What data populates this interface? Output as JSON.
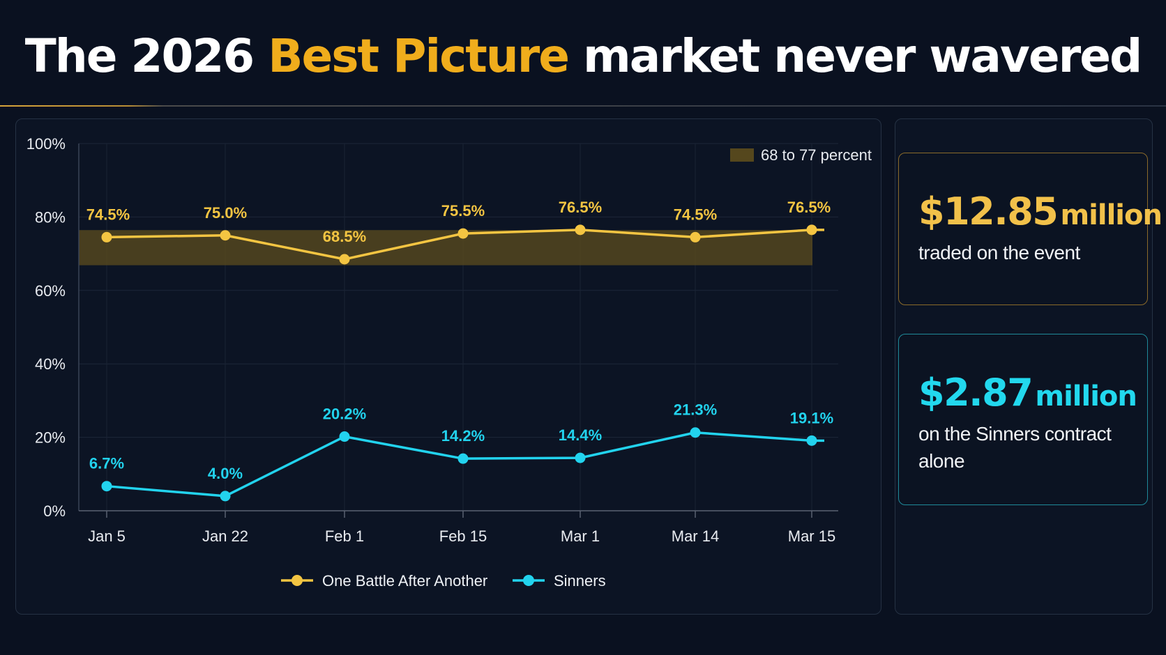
{
  "header": {
    "title_before": "The 2026 ",
    "title_accent": "Best Picture",
    "title_after": " market never wavered"
  },
  "colors": {
    "background": "#0a1120",
    "gold": "#f4c542",
    "cyan": "#22d3ee",
    "band": "#5a4a1e"
  },
  "chart_data": {
    "type": "line",
    "categories": [
      "Jan 5",
      "Jan 22",
      "Feb 1",
      "Feb 15",
      "Mar 1",
      "Mar 14",
      "Mar 15"
    ],
    "ylim": [
      0,
      100
    ],
    "yticks": [
      "0%",
      "20%",
      "40%",
      "60%",
      "80%",
      "100%"
    ],
    "grid": true,
    "series": [
      {
        "name": "One Battle After Another",
        "values": [
          74.5,
          75.0,
          68.5,
          75.5,
          76.5,
          74.5,
          76.5
        ],
        "labels": [
          "74.5%",
          "75.0%",
          "68.5%",
          "75.5%",
          "76.5%",
          "74.5%",
          "76.5%"
        ]
      },
      {
        "name": "Sinners",
        "values": [
          6.7,
          4.0,
          20.2,
          14.2,
          14.4,
          21.3,
          19.1
        ],
        "labels": [
          "6.7%",
          "4.0%",
          "20.2%",
          "14.2%",
          "14.4%",
          "21.3%",
          "19.1%"
        ]
      }
    ],
    "band": {
      "from": 68,
      "to": 77,
      "label": "68 to 77 percent"
    },
    "legend_position": "bottom-center"
  },
  "stats": {
    "traded": {
      "amount": "$12.85",
      "unit": "million",
      "caption": "traded on the event"
    },
    "sinners": {
      "amount": "$2.87",
      "unit": "million",
      "caption": "on the Sinners contract alone"
    }
  }
}
